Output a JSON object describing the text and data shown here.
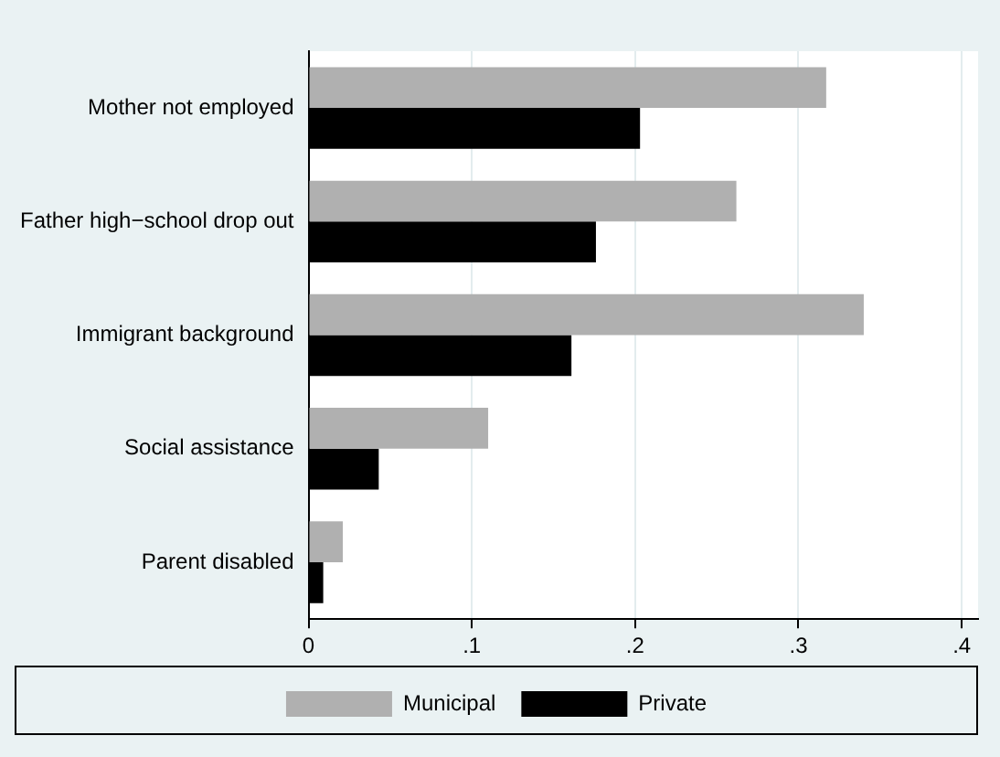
{
  "chart_data": {
    "type": "bar",
    "orientation": "horizontal",
    "categories": [
      "Mother not employed",
      "Father high−school drop out",
      "Immigrant background",
      "Social assistance",
      "Parent disabled"
    ],
    "series": [
      {
        "name": "Municipal",
        "color": "#b0b0b0",
        "values": [
          0.317,
          0.262,
          0.34,
          0.11,
          0.021
        ]
      },
      {
        "name": "Private",
        "color": "#000000",
        "values": [
          0.203,
          0.176,
          0.161,
          0.043,
          0.009
        ]
      }
    ],
    "xlim": [
      0,
      0.41
    ],
    "xticks": [
      {
        "value": 0,
        "label": "0"
      },
      {
        "value": 0.1,
        "label": ".1"
      },
      {
        "value": 0.2,
        "label": ".2"
      },
      {
        "value": 0.3,
        "label": ".3"
      },
      {
        "value": 0.4,
        "label": ".4"
      }
    ],
    "grid": "x",
    "legend": "bottom"
  }
}
